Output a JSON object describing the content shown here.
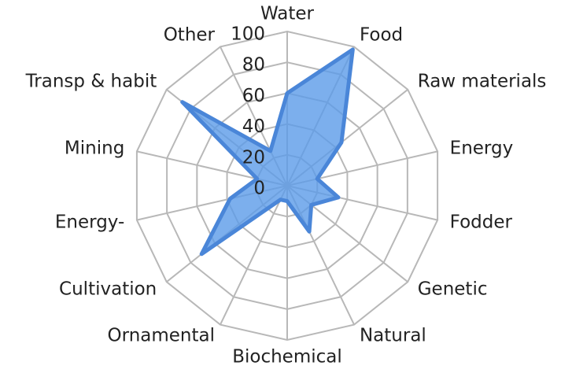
{
  "chart_data": {
    "type": "radar",
    "categories": [
      "Water",
      "Food",
      "Raw materials",
      "Energy",
      "Fodder",
      "Genetic",
      "Natural",
      "Biochemical",
      "Ornamental",
      "Cultivation",
      "Energy-",
      "Mining",
      "Transp & habit",
      "Other"
    ],
    "series": [
      {
        "name": null,
        "color": "#5b9be8",
        "values": [
          60,
          98,
          45,
          20,
          34,
          20,
          33,
          10,
          10,
          71,
          38,
          20,
          87,
          25
        ]
      }
    ],
    "ylim": [
      0,
      100
    ],
    "yticks": [
      0,
      20,
      40,
      60,
      80,
      100
    ]
  }
}
